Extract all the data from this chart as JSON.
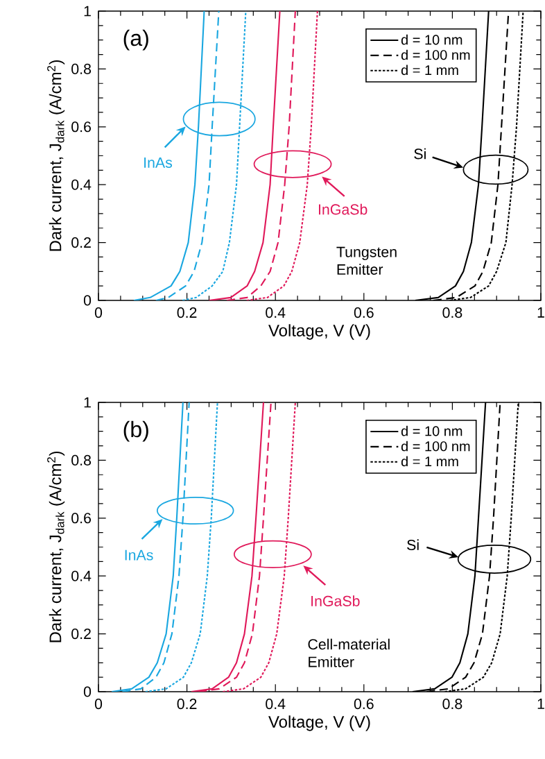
{
  "chart_data": [
    {
      "type": "line",
      "xlabel": "Voltage, V (V)",
      "ylabel": "Dark current, J$_{dark}$ (A/cm$^{2}$)",
      "xlim": [
        0,
        1
      ],
      "ylim": [
        0,
        1
      ],
      "xticks": [
        0,
        0.2,
        0.4,
        0.6,
        0.8,
        1
      ],
      "yticks": [
        0,
        0.2,
        0.4,
        0.6,
        0.8,
        1
      ],
      "legend": "top right",
      "annotations": [
        "(a)",
        "InAs",
        "InGaSb",
        "Si",
        "Tungsten Emitter"
      ],
      "series": [
        {
          "color": "#1aa7e0",
          "line_style": "solid",
          "x": [
            0.08,
            0.117,
            0.164,
            0.184,
            0.203,
            0.218,
            0.226,
            0.239
          ],
          "values": [
            0,
            0.01,
            0.05,
            0.1,
            0.2,
            0.4,
            0.6,
            1
          ]
        },
        {
          "color": "#1aa7e0",
          "line_style": "dashed",
          "x": [
            0.13,
            0.158,
            0.197,
            0.216,
            0.234,
            0.25,
            0.257,
            0.272
          ],
          "values": [
            0,
            0.01,
            0.05,
            0.1,
            0.2,
            0.4,
            0.6,
            1
          ]
        },
        {
          "color": "#1aa7e0",
          "line_style": "dotted",
          "x": [
            0.19,
            0.221,
            0.257,
            0.281,
            0.296,
            0.312,
            0.319,
            0.333
          ],
          "values": [
            0,
            0.01,
            0.05,
            0.1,
            0.2,
            0.4,
            0.6,
            1
          ]
        },
        {
          "color": "#e0195a",
          "line_style": "solid",
          "x": [
            0.25,
            0.299,
            0.336,
            0.353,
            0.372,
            0.388,
            0.395,
            0.41
          ],
          "values": [
            0,
            0.01,
            0.05,
            0.1,
            0.2,
            0.4,
            0.6,
            1
          ]
        },
        {
          "color": "#e0195a",
          "line_style": "dashed",
          "x": [
            0.29,
            0.336,
            0.367,
            0.388,
            0.406,
            0.421,
            0.431,
            0.445
          ],
          "values": [
            0,
            0.01,
            0.05,
            0.1,
            0.2,
            0.4,
            0.6,
            1
          ]
        },
        {
          "color": "#e0195a",
          "line_style": "dotted",
          "x": [
            0.335,
            0.382,
            0.419,
            0.437,
            0.455,
            0.472,
            0.481,
            0.495
          ],
          "values": [
            0,
            0.01,
            0.05,
            0.1,
            0.2,
            0.4,
            0.6,
            1
          ]
        },
        {
          "name": "d = 10 nm",
          "color": "#000000",
          "line_style": "solid",
          "x": [
            0.716,
            0.768,
            0.807,
            0.825,
            0.843,
            0.859,
            0.867,
            0.882
          ],
          "values": [
            0,
            0.01,
            0.05,
            0.1,
            0.2,
            0.4,
            0.6,
            1
          ]
        },
        {
          "name": "d = 100 nm",
          "color": "#000000",
          "line_style": "dashed",
          "x": [
            0.757,
            0.809,
            0.851,
            0.869,
            0.888,
            0.903,
            0.911,
            0.927
          ],
          "values": [
            0,
            0.01,
            0.05,
            0.1,
            0.2,
            0.4,
            0.6,
            1
          ]
        },
        {
          "name": "d = 1 mm",
          "color": "#000000",
          "line_style": "dotted",
          "x": [
            0.794,
            0.841,
            0.882,
            0.9,
            0.921,
            0.935,
            0.945,
            0.96
          ],
          "values": [
            0,
            0.01,
            0.05,
            0.1,
            0.2,
            0.4,
            0.6,
            1
          ]
        }
      ]
    },
    {
      "type": "line",
      "xlabel": "Voltage, V (V)",
      "ylabel": "Dark current, J$_{dark}$ (A/cm$^{2}$)",
      "xlim": [
        0,
        1
      ],
      "ylim": [
        0,
        1
      ],
      "xticks": [
        0,
        0.2,
        0.4,
        0.6,
        0.8,
        1
      ],
      "yticks": [
        0,
        0.2,
        0.4,
        0.6,
        0.8,
        1
      ],
      "legend": "top right",
      "annotations": [
        "(b)",
        "InAs",
        "InGaSb",
        "Si",
        "Cell-material Emitter"
      ],
      "series": [
        {
          "color": "#1aa7e0",
          "line_style": "solid",
          "x": [
            0.03,
            0.075,
            0.114,
            0.133,
            0.153,
            0.169,
            0.177,
            0.191
          ],
          "values": [
            0,
            0.01,
            0.05,
            0.1,
            0.2,
            0.4,
            0.6,
            1
          ]
        },
        {
          "color": "#1aa7e0",
          "line_style": "dashed",
          "x": [
            0.054,
            0.096,
            0.13,
            0.148,
            0.166,
            0.182,
            0.191,
            0.205
          ],
          "values": [
            0,
            0.01,
            0.05,
            0.1,
            0.2,
            0.4,
            0.6,
            1
          ]
        },
        {
          "color": "#1aa7e0",
          "line_style": "dotted",
          "x": [
            0.106,
            0.153,
            0.192,
            0.21,
            0.23,
            0.246,
            0.255,
            0.269
          ],
          "values": [
            0,
            0.01,
            0.05,
            0.1,
            0.2,
            0.4,
            0.6,
            1
          ]
        },
        {
          "color": "#e0195a",
          "line_style": "solid",
          "x": [
            0.21,
            0.257,
            0.294,
            0.312,
            0.33,
            0.347,
            0.356,
            0.373
          ],
          "values": [
            0,
            0.01,
            0.05,
            0.1,
            0.2,
            0.4,
            0.6,
            1
          ]
        },
        {
          "color": "#e0195a",
          "line_style": "dashed",
          "x": [
            0.226,
            0.273,
            0.312,
            0.33,
            0.348,
            0.364,
            0.373,
            0.39
          ],
          "values": [
            0,
            0.01,
            0.05,
            0.1,
            0.2,
            0.4,
            0.6,
            1
          ]
        },
        {
          "color": "#e0195a",
          "line_style": "dotted",
          "x": [
            0.281,
            0.328,
            0.367,
            0.385,
            0.403,
            0.42,
            0.429,
            0.445
          ],
          "values": [
            0,
            0.01,
            0.05,
            0.1,
            0.2,
            0.4,
            0.6,
            1
          ]
        },
        {
          "name": "d = 10 nm",
          "color": "#000000",
          "line_style": "solid",
          "x": [
            0.71,
            0.76,
            0.799,
            0.817,
            0.835,
            0.851,
            0.859,
            0.875
          ],
          "values": [
            0,
            0.01,
            0.05,
            0.1,
            0.2,
            0.4,
            0.6,
            1
          ]
        },
        {
          "name": "d = 100 nm",
          "color": "#000000",
          "line_style": "dashed",
          "x": [
            0.742,
            0.791,
            0.83,
            0.849,
            0.868,
            0.884,
            0.893,
            0.908
          ],
          "values": [
            0,
            0.01,
            0.05,
            0.1,
            0.2,
            0.4,
            0.6,
            1
          ]
        },
        {
          "name": "d = 1 mm",
          "color": "#000000",
          "line_style": "dotted",
          "x": [
            0.783,
            0.83,
            0.87,
            0.889,
            0.908,
            0.924,
            0.933,
            0.949
          ],
          "values": [
            0,
            0.01,
            0.05,
            0.1,
            0.2,
            0.4,
            0.6,
            1
          ]
        }
      ]
    }
  ]
}
